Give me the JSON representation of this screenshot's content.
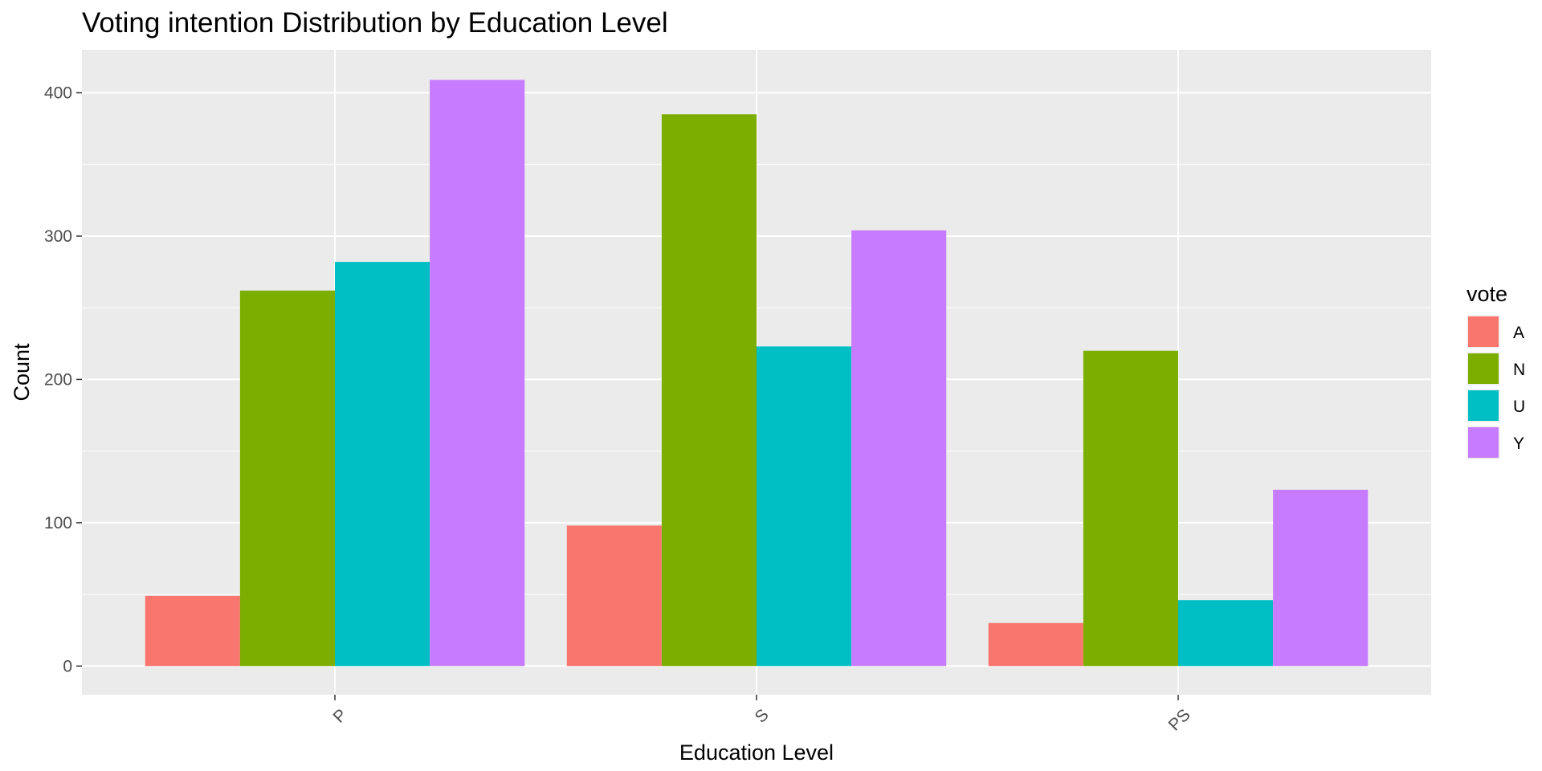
{
  "chart_data": {
    "type": "bar",
    "title": "Voting intention Distribution by Education Level",
    "xlabel": "Education Level",
    "ylabel": "Count",
    "categories": [
      "P",
      "S",
      "PS"
    ],
    "series": [
      {
        "name": "A",
        "color": "#F8766D",
        "values": [
          49,
          98,
          30
        ]
      },
      {
        "name": "N",
        "color": "#7CAE00",
        "values": [
          262,
          385,
          220
        ]
      },
      {
        "name": "U",
        "color": "#00BFC4",
        "values": [
          282,
          223,
          46
        ]
      },
      {
        "name": "Y",
        "color": "#C77CFF",
        "values": [
          409,
          304,
          123
        ]
      }
    ],
    "ylim": [
      -20,
      430
    ],
    "y_ticks": [
      0,
      100,
      200,
      300,
      400
    ],
    "y_tick_labels": [
      "0",
      "100",
      "200",
      "300",
      "400"
    ],
    "legend": {
      "title": "vote",
      "position": "right"
    },
    "grid": true,
    "x_tick_rotation": "45deg",
    "panel_background": "#EBEBEB",
    "gridline_color": "#FFFFFF"
  }
}
